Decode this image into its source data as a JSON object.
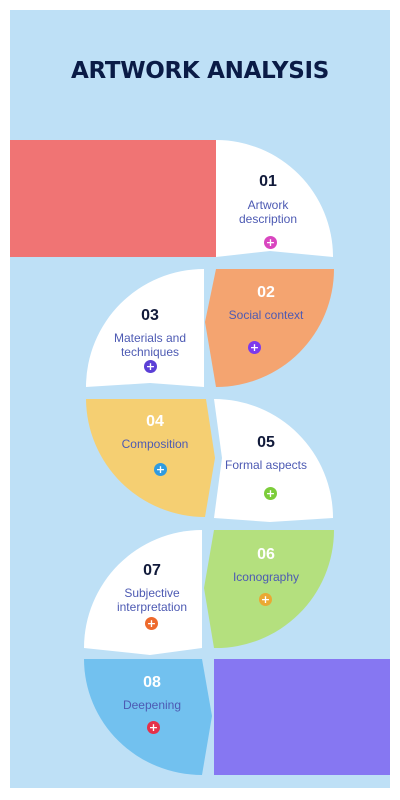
{
  "title": "ARTWORK ANALYSIS",
  "steps": [
    {
      "num": "01",
      "label_line1": "Artwork",
      "label_line2": "description",
      "color": "#ffffff",
      "icon_color": "#d946c0"
    },
    {
      "num": "02",
      "label_line1": "Social context",
      "label_line2": "",
      "color": "#f4a470",
      "icon_color": "#7c3aed"
    },
    {
      "num": "03",
      "label_line1": "Materials and",
      "label_line2": "techniques",
      "color": "#ffffff",
      "icon_color": "#5b3fd6"
    },
    {
      "num": "04",
      "label_line1": "Composition",
      "label_line2": "",
      "color": "#f5cf72",
      "icon_color": "#2f9be0"
    },
    {
      "num": "05",
      "label_line1": "Formal aspects",
      "label_line2": "",
      "color": "#ffffff",
      "icon_color": "#7ccd3a"
    },
    {
      "num": "06",
      "label_line1": "Iconography",
      "label_line2": "",
      "color": "#b4e07e",
      "icon_color": "#eaa833"
    },
    {
      "num": "07",
      "label_line1": "Subjective",
      "label_line2": "interpretation",
      "color": "#ffffff",
      "icon_color": "#ee6a2c"
    },
    {
      "num": "08",
      "label_line1": "Deepening",
      "label_line2": "",
      "color": "#72c1ef",
      "icon_color": "#e5314a"
    }
  ],
  "icon_glyph": "+",
  "accent_colors": {
    "top_block": "#f07474",
    "bottom_block": "#8677f2",
    "panel": "#bee0f6",
    "title": "#0a1b46"
  }
}
